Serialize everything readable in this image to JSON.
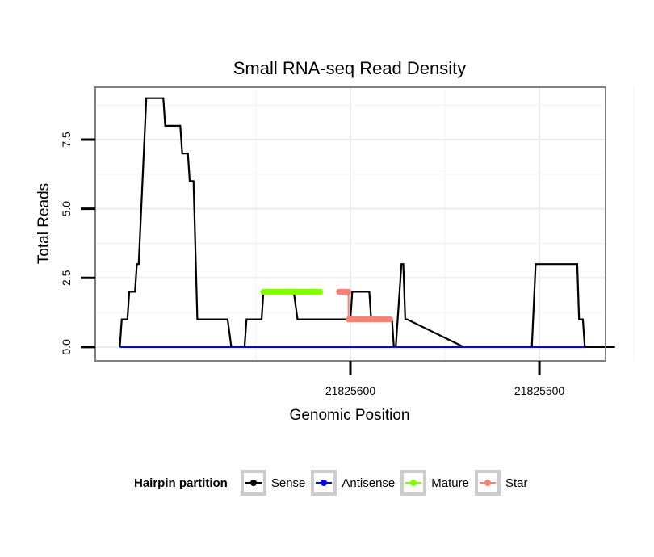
{
  "chart_data": {
    "type": "line",
    "title": "Small RNA-seq Read Density",
    "xlabel": "Genomic Position",
    "ylabel": "Total Reads",
    "x_reversed": true,
    "xlim": [
      21825735,
      21825465
    ],
    "ylim": [
      -0.5,
      9.4
    ],
    "x_ticks": [
      21825600,
      21825500
    ],
    "x_tick_labels": [
      "21825600",
      "21825500"
    ],
    "y_ticks": [
      0,
      2.5,
      5,
      7.5
    ],
    "y_tick_labels": [
      "0.0",
      "2.5",
      "5.0",
      "7.5"
    ],
    "grid": true,
    "legend_position": "bottom",
    "legend_title": "Hairpin partition",
    "colors": {
      "Sense": "#000000",
      "Antisense": "#0000ff",
      "Mature": "#7fff00",
      "Star": "#fa8072"
    },
    "series": [
      {
        "name": "Sense",
        "style": "line",
        "x": [
          21825722,
          21825721,
          21825718,
          21825717,
          21825714,
          21825713,
          21825712,
          21825708,
          21825699,
          21825698,
          21825690,
          21825689,
          21825686,
          21825685,
          21825683,
          21825681,
          21825665,
          21825663,
          21825656,
          21825655,
          21825647,
          21825646,
          21825630,
          21825628,
          21825600,
          21825599,
          21825590,
          21825589,
          21825578,
          21825577,
          21825576,
          21825573,
          21825572,
          21825571,
          21825570,
          21825540,
          21825539,
          21825504,
          21825502,
          21825480,
          21825479,
          21825477,
          21825476,
          21825473,
          21825460
        ],
        "y": [
          0,
          1,
          1,
          2,
          2,
          3,
          3,
          9,
          9,
          8,
          8,
          7,
          7,
          6,
          6,
          1,
          1,
          0,
          0,
          1,
          1,
          2,
          2,
          1,
          1,
          2,
          2,
          1,
          1,
          0,
          0,
          3,
          3,
          1,
          1,
          0,
          0,
          0,
          3,
          3,
          1,
          1,
          0,
          0,
          0
        ]
      },
      {
        "name": "Antisense",
        "style": "line",
        "x": [
          21825722,
          21825476
        ],
        "y": [
          0,
          0
        ]
      },
      {
        "name": "Mature",
        "style": "points",
        "x_range": [
          21825646,
          21825616
        ],
        "y": 2
      },
      {
        "name": "Star",
        "style": "points",
        "x_ranges": [
          [
            21825606,
            21825601
          ],
          [
            21825601,
            21825579
          ]
        ],
        "y_values": [
          2,
          1
        ]
      }
    ]
  }
}
